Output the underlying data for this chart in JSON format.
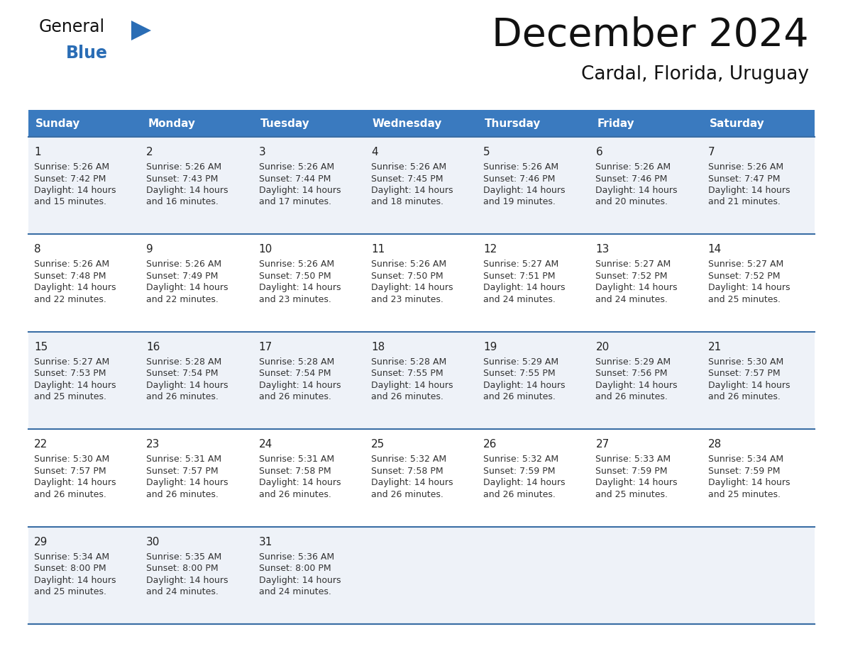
{
  "title": "December 2024",
  "subtitle": "Cardal, Florida, Uruguay",
  "days_of_week": [
    "Sunday",
    "Monday",
    "Tuesday",
    "Wednesday",
    "Thursday",
    "Friday",
    "Saturday"
  ],
  "header_bg_color": "#3a7abf",
  "header_text_color": "#ffffff",
  "cell_bg_color_odd": "#eef2f8",
  "cell_bg_color_even": "#ffffff",
  "row_line_color": "#3a6ea5",
  "day_num_color": "#222222",
  "info_text_color": "#333333",
  "title_color": "#111111",
  "subtitle_color": "#111111",
  "logo_general_color": "#111111",
  "logo_blue_color": "#2a6db5",
  "weeks": [
    [
      {
        "day": 1,
        "sunrise": "5:26 AM",
        "sunset": "7:42 PM",
        "daylight": "14 hours and 15 minutes."
      },
      {
        "day": 2,
        "sunrise": "5:26 AM",
        "sunset": "7:43 PM",
        "daylight": "14 hours and 16 minutes."
      },
      {
        "day": 3,
        "sunrise": "5:26 AM",
        "sunset": "7:44 PM",
        "daylight": "14 hours and 17 minutes."
      },
      {
        "day": 4,
        "sunrise": "5:26 AM",
        "sunset": "7:45 PM",
        "daylight": "14 hours and 18 minutes."
      },
      {
        "day": 5,
        "sunrise": "5:26 AM",
        "sunset": "7:46 PM",
        "daylight": "14 hours and 19 minutes."
      },
      {
        "day": 6,
        "sunrise": "5:26 AM",
        "sunset": "7:46 PM",
        "daylight": "14 hours and 20 minutes."
      },
      {
        "day": 7,
        "sunrise": "5:26 AM",
        "sunset": "7:47 PM",
        "daylight": "14 hours and 21 minutes."
      }
    ],
    [
      {
        "day": 8,
        "sunrise": "5:26 AM",
        "sunset": "7:48 PM",
        "daylight": "14 hours and 22 minutes."
      },
      {
        "day": 9,
        "sunrise": "5:26 AM",
        "sunset": "7:49 PM",
        "daylight": "14 hours and 22 minutes."
      },
      {
        "day": 10,
        "sunrise": "5:26 AM",
        "sunset": "7:50 PM",
        "daylight": "14 hours and 23 minutes."
      },
      {
        "day": 11,
        "sunrise": "5:26 AM",
        "sunset": "7:50 PM",
        "daylight": "14 hours and 23 minutes."
      },
      {
        "day": 12,
        "sunrise": "5:27 AM",
        "sunset": "7:51 PM",
        "daylight": "14 hours and 24 minutes."
      },
      {
        "day": 13,
        "sunrise": "5:27 AM",
        "sunset": "7:52 PM",
        "daylight": "14 hours and 24 minutes."
      },
      {
        "day": 14,
        "sunrise": "5:27 AM",
        "sunset": "7:52 PM",
        "daylight": "14 hours and 25 minutes."
      }
    ],
    [
      {
        "day": 15,
        "sunrise": "5:27 AM",
        "sunset": "7:53 PM",
        "daylight": "14 hours and 25 minutes."
      },
      {
        "day": 16,
        "sunrise": "5:28 AM",
        "sunset": "7:54 PM",
        "daylight": "14 hours and 26 minutes."
      },
      {
        "day": 17,
        "sunrise": "5:28 AM",
        "sunset": "7:54 PM",
        "daylight": "14 hours and 26 minutes."
      },
      {
        "day": 18,
        "sunrise": "5:28 AM",
        "sunset": "7:55 PM",
        "daylight": "14 hours and 26 minutes."
      },
      {
        "day": 19,
        "sunrise": "5:29 AM",
        "sunset": "7:55 PM",
        "daylight": "14 hours and 26 minutes."
      },
      {
        "day": 20,
        "sunrise": "5:29 AM",
        "sunset": "7:56 PM",
        "daylight": "14 hours and 26 minutes."
      },
      {
        "day": 21,
        "sunrise": "5:30 AM",
        "sunset": "7:57 PM",
        "daylight": "14 hours and 26 minutes."
      }
    ],
    [
      {
        "day": 22,
        "sunrise": "5:30 AM",
        "sunset": "7:57 PM",
        "daylight": "14 hours and 26 minutes."
      },
      {
        "day": 23,
        "sunrise": "5:31 AM",
        "sunset": "7:57 PM",
        "daylight": "14 hours and 26 minutes."
      },
      {
        "day": 24,
        "sunrise": "5:31 AM",
        "sunset": "7:58 PM",
        "daylight": "14 hours and 26 minutes."
      },
      {
        "day": 25,
        "sunrise": "5:32 AM",
        "sunset": "7:58 PM",
        "daylight": "14 hours and 26 minutes."
      },
      {
        "day": 26,
        "sunrise": "5:32 AM",
        "sunset": "7:59 PM",
        "daylight": "14 hours and 26 minutes."
      },
      {
        "day": 27,
        "sunrise": "5:33 AM",
        "sunset": "7:59 PM",
        "daylight": "14 hours and 25 minutes."
      },
      {
        "day": 28,
        "sunrise": "5:34 AM",
        "sunset": "7:59 PM",
        "daylight": "14 hours and 25 minutes."
      }
    ],
    [
      {
        "day": 29,
        "sunrise": "5:34 AM",
        "sunset": "8:00 PM",
        "daylight": "14 hours and 25 minutes."
      },
      {
        "day": 30,
        "sunrise": "5:35 AM",
        "sunset": "8:00 PM",
        "daylight": "14 hours and 24 minutes."
      },
      {
        "day": 31,
        "sunrise": "5:36 AM",
        "sunset": "8:00 PM",
        "daylight": "14 hours and 24 minutes."
      },
      null,
      null,
      null,
      null
    ]
  ]
}
